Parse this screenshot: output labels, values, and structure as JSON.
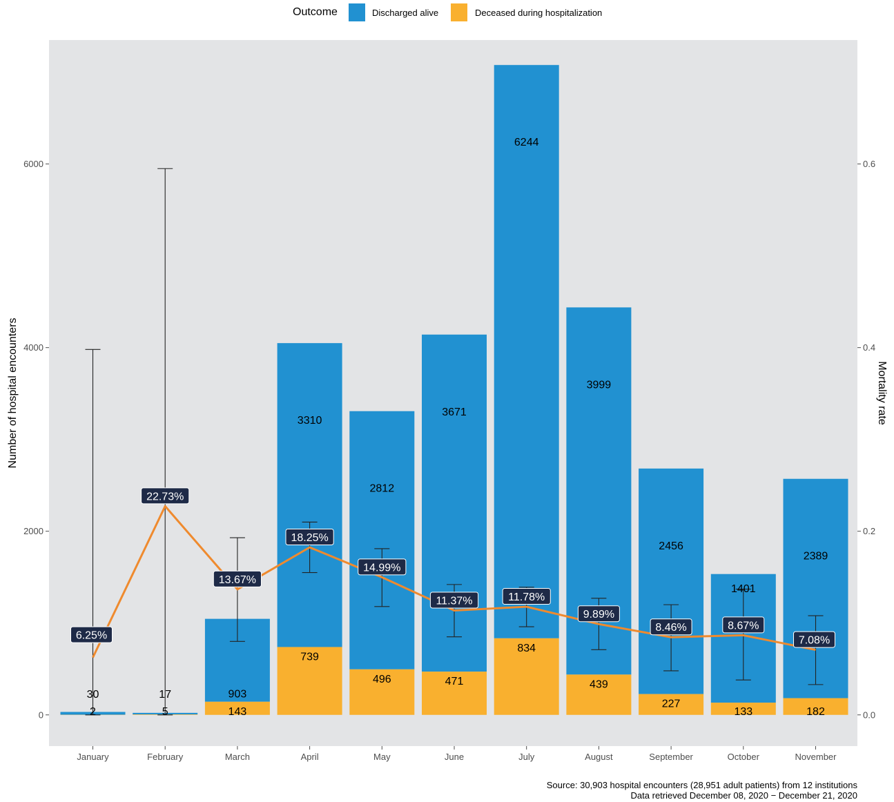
{
  "legend": {
    "title": "Outcome",
    "items": [
      {
        "label": "Discharged alive",
        "color": "#2191d1"
      },
      {
        "label": "Deceased during hospitalization",
        "color": "#f9b02f"
      }
    ]
  },
  "caption": {
    "line1": "Source: 30,903 hospital encounters (28,951 adult patients) from 12 institutions",
    "line2": "Data retrieved December 08, 2020 − December 21, 2020"
  },
  "chart_data": {
    "type": "bar",
    "stacked": true,
    "categories": [
      "January",
      "February",
      "March",
      "April",
      "May",
      "June",
      "July",
      "August",
      "September",
      "October",
      "November"
    ],
    "series": [
      {
        "name": "Discharged alive",
        "color": "#2191d1",
        "values": [
          30,
          17,
          903,
          3310,
          2812,
          3671,
          6244,
          3999,
          2456,
          1401,
          2389
        ]
      },
      {
        "name": "Deceased during hospitalization",
        "color": "#f9b02f",
        "values": [
          2,
          5,
          143,
          739,
          496,
          471,
          834,
          439,
          227,
          133,
          182
        ]
      }
    ],
    "mortality_rate": {
      "type": "line",
      "color": "#ef8a2e",
      "values": [
        0.0625,
        0.2273,
        0.1367,
        0.1825,
        0.1499,
        0.1137,
        0.1178,
        0.0989,
        0.0846,
        0.0867,
        0.0708
      ],
      "labels": [
        "6.25%",
        "22.73%",
        "13.67%",
        "18.25%",
        "14.99%",
        "11.37%",
        "11.78%",
        "9.89%",
        "8.46%",
        "8.67%",
        "7.08%"
      ],
      "ci_low": [
        0.0,
        0.0,
        0.08,
        0.155,
        0.118,
        0.085,
        0.096,
        0.071,
        0.048,
        0.038,
        0.033
      ],
      "ci_high": [
        0.398,
        0.595,
        0.193,
        0.21,
        0.181,
        0.142,
        0.139,
        0.127,
        0.12,
        0.137,
        0.108
      ]
    },
    "y_left": {
      "label": "Number of hospital encounters",
      "ticks": [
        0,
        2000,
        4000,
        6000
      ],
      "tick_labels": [
        "0",
        "2000",
        "4000",
        "6000"
      ],
      "lim": [
        -340,
        7350
      ]
    },
    "y_right": {
      "label": "Mortality rate",
      "ticks": [
        0,
        0.2,
        0.4,
        0.6
      ],
      "tick_labels": [
        "0.0",
        "0.2",
        "0.4",
        "0.6"
      ],
      "lim": [
        -0.034,
        0.735
      ]
    },
    "grid": false,
    "legend_position": "top",
    "panel_color": "#e3e4e6"
  }
}
